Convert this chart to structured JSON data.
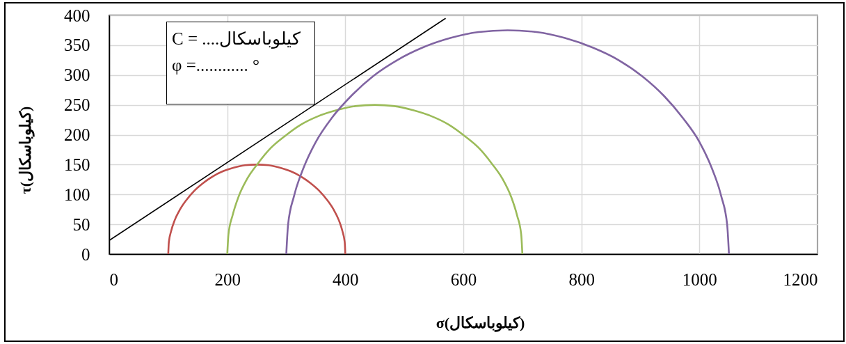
{
  "chart_data": {
    "type": "line",
    "xlabel": "σ(کیلوباسکال)",
    "ylabel": "τ(کیلوباسکال)",
    "annotations": [
      "C = ....کیلوباسکال",
      "φ =............ °"
    ],
    "xlim": [
      0,
      1200
    ],
    "ylim": [
      0,
      400
    ],
    "xticks": [
      0,
      200,
      400,
      600,
      800,
      1000,
      1200
    ],
    "yticks": [
      0,
      50,
      100,
      150,
      200,
      250,
      300,
      350,
      400
    ],
    "grid": true,
    "series": [
      {
        "color": "#c0504d",
        "x": [
          100,
          101,
          105,
          111,
          120,
          131,
          144,
          159,
          175,
          193,
          211,
          230,
          250,
          270,
          289,
          307,
          325,
          341,
          356,
          369,
          380,
          389,
          395,
          399,
          400
        ],
        "values": [
          0,
          20,
          39,
          57,
          75,
          91,
          106,
          119,
          130,
          139,
          145,
          149,
          150,
          149,
          145,
          139,
          130,
          119,
          106,
          91,
          75,
          57,
          39,
          20,
          0
        ]
      },
      {
        "color": "#9bbb59",
        "x": [
          200,
          202,
          209,
          219,
          233,
          252,
          273,
          298,
          325,
          354,
          385,
          417,
          450,
          483,
          515,
          546,
          575,
          602,
          627,
          648,
          667,
          681,
          691,
          698,
          700
        ],
        "values": [
          0,
          33,
          65,
          96,
          125,
          152,
          177,
          198,
          217,
          231,
          241,
          248,
          250,
          248,
          241,
          231,
          217,
          198,
          177,
          152,
          125,
          96,
          65,
          33,
          0
        ]
      },
      {
        "color": "#8064a2",
        "x": [
          300,
          303,
          313,
          329,
          350,
          377,
          410,
          447,
          488,
          531,
          578,
          626,
          675,
          724,
          772,
          819,
          863,
          903,
          940,
          972,
          1000,
          1021,
          1037,
          1047,
          1050
        ],
        "values": [
          0,
          49,
          97,
          144,
          188,
          228,
          265,
          298,
          325,
          346,
          362,
          372,
          375,
          372,
          362,
          346,
          325,
          298,
          265,
          228,
          188,
          144,
          97,
          49,
          0
        ]
      },
      {
        "color": "#000000",
        "x": [
          0,
          570
        ],
        "values": [
          23,
          395
        ]
      }
    ]
  }
}
